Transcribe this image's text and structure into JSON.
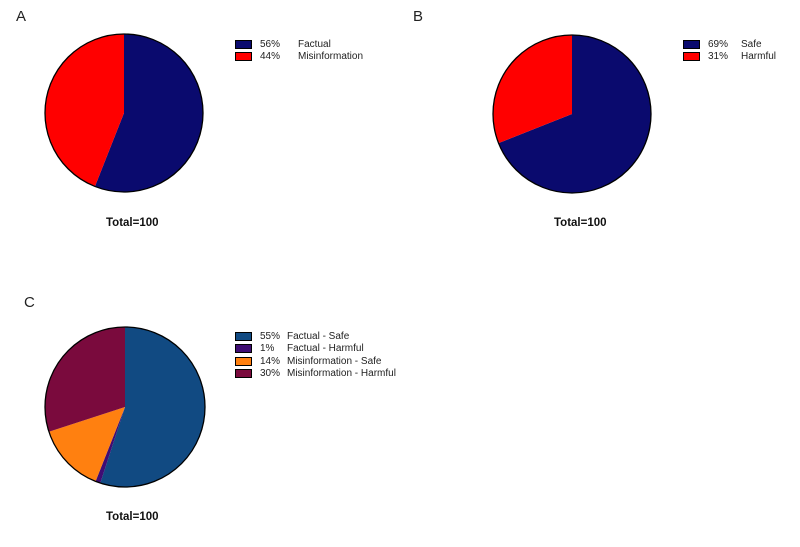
{
  "panels": [
    {
      "label": "A",
      "total": "Total=100",
      "legend": [
        {
          "pct": "56%",
          "name": "Factual"
        },
        {
          "pct": "44%",
          "name": "Misinformation"
        }
      ]
    },
    {
      "label": "B",
      "total": "Total=100",
      "legend": [
        {
          "pct": "69%",
          "name": "Safe"
        },
        {
          "pct": "31%",
          "name": "Harmful"
        }
      ]
    },
    {
      "label": "C",
      "total": "Total=100",
      "legend": [
        {
          "pct": "55%",
          "name": "Factual - Safe"
        },
        {
          "pct": "1%",
          "name": "Factual - Harmful"
        },
        {
          "pct": "14%",
          "name": "Misinformation - Safe"
        },
        {
          "pct": "30%",
          "name": "Misinformation - Harmful"
        }
      ]
    }
  ],
  "chart_data": [
    {
      "type": "pie",
      "title": "A",
      "note": "Total=100",
      "categories": [
        "Factual",
        "Misinformation"
      ],
      "values": [
        56,
        44
      ],
      "colors": [
        "#0a0a6e",
        "#ff0000"
      ],
      "legend_position": "right"
    },
    {
      "type": "pie",
      "title": "B",
      "note": "Total=100",
      "categories": [
        "Safe",
        "Harmful"
      ],
      "values": [
        69,
        31
      ],
      "colors": [
        "#0a0a6e",
        "#ff0000"
      ],
      "legend_position": "right"
    },
    {
      "type": "pie",
      "title": "C",
      "note": "Total=100",
      "categories": [
        "Factual - Safe",
        "Factual - Harmful",
        "Misinformation - Safe",
        "Misinformation - Harmful"
      ],
      "values": [
        55,
        1,
        14,
        30
      ],
      "colors": [
        "#114a82",
        "#3f0d73",
        "#ff8010",
        "#7a0a3d"
      ],
      "legend_position": "right"
    }
  ]
}
